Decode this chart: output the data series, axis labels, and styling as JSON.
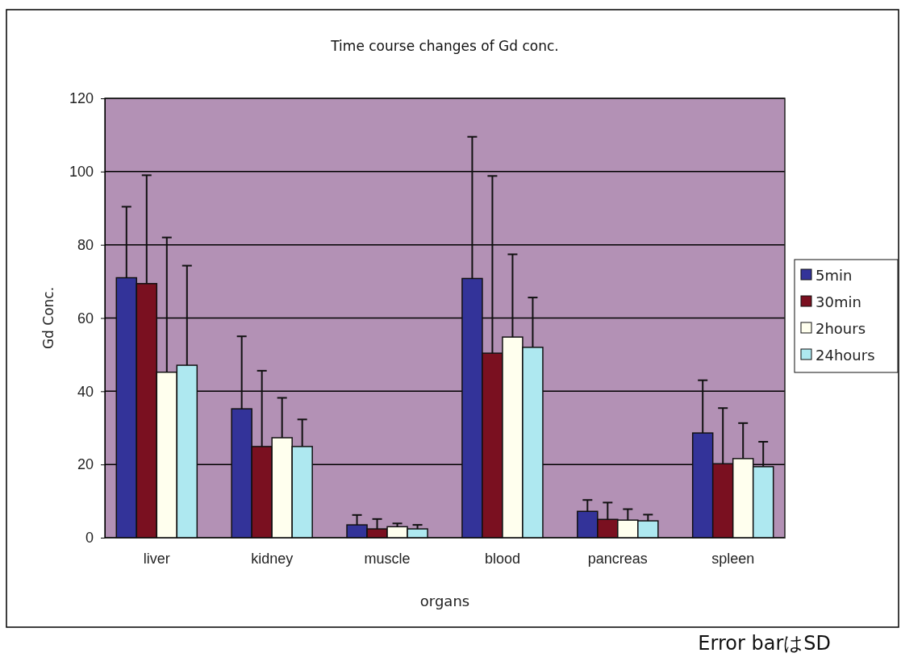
{
  "chart_data": {
    "type": "bar",
    "title": "Time course changes of Gd conc.",
    "xlabel": "organs",
    "ylabel": "Gd Conc.",
    "categories": [
      "liver",
      "kidney",
      "muscle",
      "blood",
      "pancreas",
      "spleen"
    ],
    "series": [
      {
        "name": "5min",
        "color": "#333399",
        "values": [
          71,
          35.2,
          3.5,
          70.8,
          7.2,
          28.6
        ],
        "errors": [
          [
            71,
            90.4
          ],
          [
            35.2,
            55
          ],
          [
            3.5,
            6.2
          ],
          [
            70.8,
            109.5
          ],
          [
            7.2,
            10.3
          ],
          [
            28.6,
            43
          ]
        ]
      },
      {
        "name": "30min",
        "color": "#7a1020",
        "values": [
          69.4,
          24.9,
          2.4,
          50.4,
          5,
          20.2
        ],
        "errors": [
          [
            69.4,
            99
          ],
          [
            24.9,
            45.6
          ],
          [
            2.4,
            5.1
          ],
          [
            50.4,
            98.8
          ],
          [
            5,
            9.6
          ],
          [
            20.2,
            35.4
          ]
        ]
      },
      {
        "name": "2hours",
        "color": "#ffffee",
        "values": [
          45.2,
          27.3,
          3,
          54.8,
          4.8,
          21.6
        ],
        "errors": [
          [
            45.2,
            82
          ],
          [
            27.3,
            38.2
          ],
          [
            3,
            3.9
          ],
          [
            54.8,
            77.4
          ],
          [
            4.8,
            7.8
          ],
          [
            21.6,
            31.3
          ]
        ]
      },
      {
        "name": "24hours",
        "color": "#aee8f0",
        "values": [
          47.1,
          24.9,
          2.4,
          52,
          4.6,
          19.4
        ],
        "errors": [
          [
            47.1,
            74.3
          ],
          [
            24.9,
            32.3
          ],
          [
            2.4,
            3.5
          ],
          [
            52,
            65.6
          ],
          [
            4.6,
            6.3
          ],
          [
            19.4,
            26.2
          ]
        ]
      }
    ],
    "ylim": [
      0,
      120
    ],
    "yticks": [
      0,
      20,
      40,
      60,
      80,
      100,
      120
    ],
    "grid": "y",
    "legend": "right",
    "annotations": [
      "Error barはSD"
    ]
  }
}
